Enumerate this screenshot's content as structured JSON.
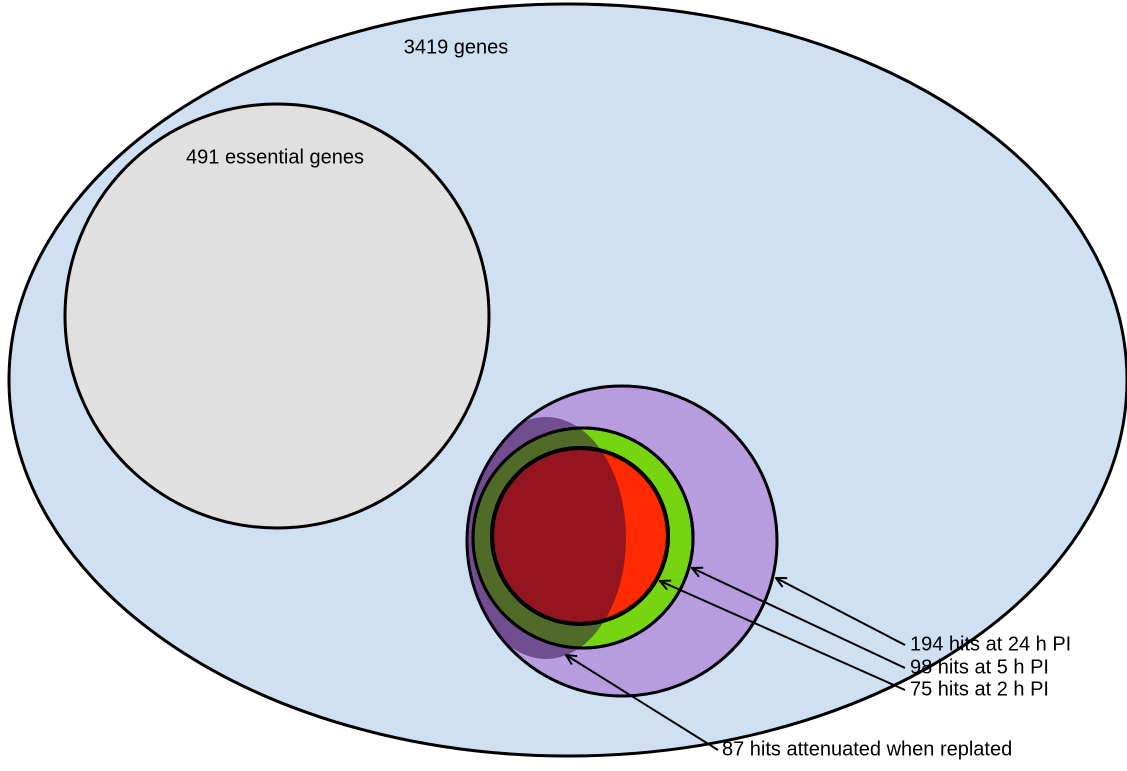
{
  "sets": {
    "all_genes": {
      "label": "3419 genes"
    },
    "essential": {
      "label": "491 essential genes"
    },
    "hits_24h": {
      "label": "194 hits at 24 h PI"
    },
    "hits_5h": {
      "label": "98 hits at 5 h PI"
    },
    "hits_2h": {
      "label": "75 hits at 2 h PI"
    },
    "attenuated": {
      "label": "87 hits attenuated when replated"
    }
  }
}
